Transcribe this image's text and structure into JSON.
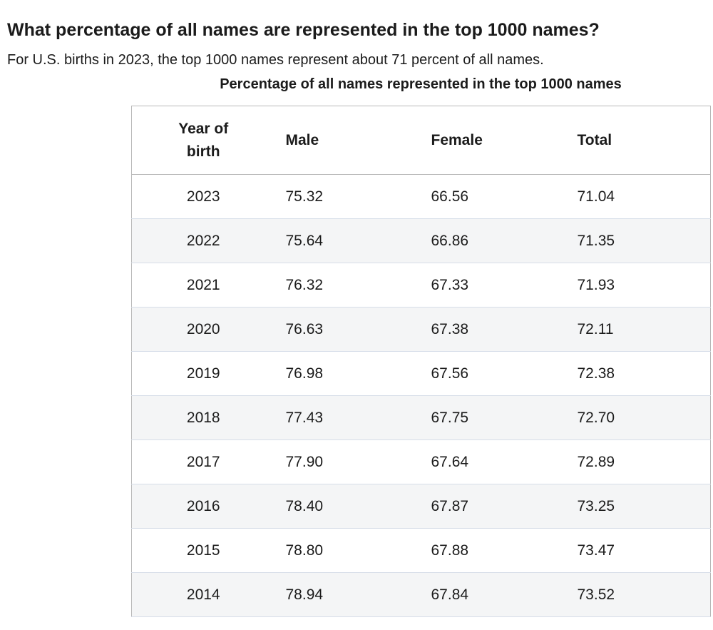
{
  "page": {
    "heading": "What percentage of all names are represented in the top 1000 names?",
    "intro": "For U.S. births in 2023, the top 1000 names represent about 71 percent of all names."
  },
  "chart_data": {
    "type": "table",
    "title": "Percentage of all names represented in the top 1000 names",
    "columns": [
      "Year of birth",
      "Male",
      "Female",
      "Total"
    ],
    "rows": [
      {
        "year": "2023",
        "male": "75.32",
        "female": "66.56",
        "total": "71.04"
      },
      {
        "year": "2022",
        "male": "75.64",
        "female": "66.86",
        "total": "71.35"
      },
      {
        "year": "2021",
        "male": "76.32",
        "female": "67.33",
        "total": "71.93"
      },
      {
        "year": "2020",
        "male": "76.63",
        "female": "67.38",
        "total": "72.11"
      },
      {
        "year": "2019",
        "male": "76.98",
        "female": "67.56",
        "total": "72.38"
      },
      {
        "year": "2018",
        "male": "77.43",
        "female": "67.75",
        "total": "72.70"
      },
      {
        "year": "2017",
        "male": "77.90",
        "female": "67.64",
        "total": "72.89"
      },
      {
        "year": "2016",
        "male": "78.40",
        "female": "67.87",
        "total": "73.25"
      },
      {
        "year": "2015",
        "male": "78.80",
        "female": "67.88",
        "total": "73.47"
      },
      {
        "year": "2014",
        "male": "78.94",
        "female": "67.84",
        "total": "73.52"
      }
    ]
  }
}
